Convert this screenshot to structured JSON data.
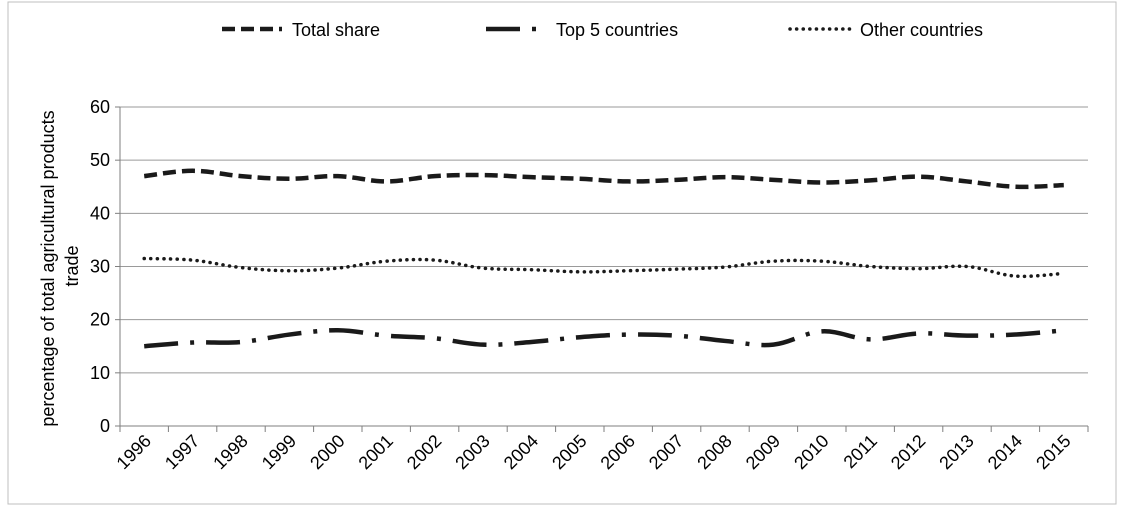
{
  "chart_data": {
    "type": "line",
    "title": "",
    "xlabel": "",
    "ylabel_lines": [
      "percentage of total agricultural products",
      "trade"
    ],
    "categories": [
      "1996",
      "1997",
      "1998",
      "1999",
      "2000",
      "2001",
      "2002",
      "2003",
      "2004",
      "2005",
      "2006",
      "2007",
      "2008",
      "2009",
      "2010",
      "2011",
      "2012",
      "2013",
      "2014",
      "2015"
    ],
    "ylim": [
      0,
      60
    ],
    "yticks": [
      "0",
      "10",
      "20",
      "30",
      "40",
      "50",
      "60"
    ],
    "grid": true,
    "legend_position": "top",
    "series": [
      {
        "name": "Total share",
        "style": "dashed",
        "color": "#1a1a1a",
        "values": [
          47.0,
          48.0,
          47.0,
          46.5,
          47.0,
          46.0,
          47.0,
          47.2,
          46.8,
          46.5,
          46.0,
          46.3,
          46.8,
          46.3,
          45.8,
          46.2,
          46.9,
          46.0,
          45.0,
          45.3
        ]
      },
      {
        "name": "Top 5 countries",
        "style": "long-dash-dot",
        "color": "#1a1a1a",
        "values": [
          15.0,
          15.7,
          15.8,
          17.2,
          18.0,
          17.0,
          16.5,
          15.3,
          15.8,
          16.7,
          17.2,
          17.0,
          16.0,
          15.3,
          17.8,
          16.3,
          17.4,
          17.0,
          17.2,
          18.0
        ]
      },
      {
        "name": "Other countries",
        "style": "dotted",
        "color": "#1a1a1a",
        "values": [
          31.5,
          31.2,
          29.8,
          29.2,
          29.7,
          31.0,
          31.2,
          29.7,
          29.4,
          29.0,
          29.2,
          29.5,
          29.9,
          31.0,
          31.0,
          30.0,
          29.6,
          30.0,
          28.2,
          28.7
        ]
      }
    ]
  }
}
